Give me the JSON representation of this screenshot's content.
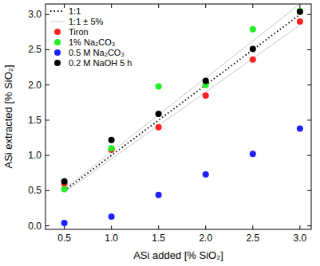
{
  "chart_data": {
    "type": "scatter",
    "x_label": "ASi added [% SiO₂]",
    "y_label": "ASi extracted [% SiO₂]",
    "x": [
      0.5,
      1,
      1.5,
      2,
      2.5,
      3
    ],
    "xlim": [
      0.3,
      3.12
    ],
    "ylim": [
      -0.05,
      3.15
    ],
    "xticks": [
      0.5,
      {
        "value": 1,
        "label": "1.0"
      },
      1.5,
      {
        "value": 2,
        "label": "2.0"
      },
      2.5,
      {
        "value": 3,
        "label": "3.0"
      }
    ],
    "yticks": [
      {
        "value": 0,
        "label": "0.0"
      },
      0.5,
      {
        "value": 1,
        "label": "1.0"
      },
      1.5,
      {
        "value": 2,
        "label": "2.0"
      },
      2.5,
      {
        "value": 3,
        "label": "3.0"
      }
    ],
    "legend": "upper left",
    "grid": false,
    "series": [
      {
        "name": "1:1",
        "type": "line",
        "line_style": "dotted",
        "color": "#000000",
        "values": [
          0.5,
          1,
          1.5,
          2,
          2.5,
          3
        ]
      },
      {
        "name": "1:1 ± 5%",
        "type": "line",
        "line_style": "solid",
        "color": "#c8c8c8",
        "values": [
          0.525,
          1.05,
          1.575,
          2.1,
          2.625,
          3.15
        ],
        "lower": [
          0.475,
          0.95,
          1.425,
          1.9,
          2.375,
          2.85
        ]
      },
      {
        "name": "Tiron",
        "type": "scatter",
        "marker": "circle",
        "color": "#ff2020",
        "values": [
          0.6,
          1.08,
          1.4,
          1.85,
          2.36,
          2.9
        ]
      },
      {
        "name": "1% Na₂CO₃",
        "type": "scatter",
        "marker": "circle",
        "color": "#22ee22",
        "values": [
          0.52,
          1.1,
          1.98,
          2.0,
          2.79,
          3.05
        ]
      },
      {
        "name": "0.5 M Na₂CO₃",
        "type": "scatter",
        "marker": "circle",
        "color": "#2020ff",
        "values": [
          0.04,
          0.13,
          0.44,
          0.73,
          1.02,
          1.38
        ]
      },
      {
        "name": "0.2 M NaOH 5 h",
        "type": "scatter",
        "marker": "circle",
        "color": "#000000",
        "values": [
          0.63,
          1.22,
          1.59,
          2.06,
          2.51,
          3.04
        ]
      }
    ]
  }
}
